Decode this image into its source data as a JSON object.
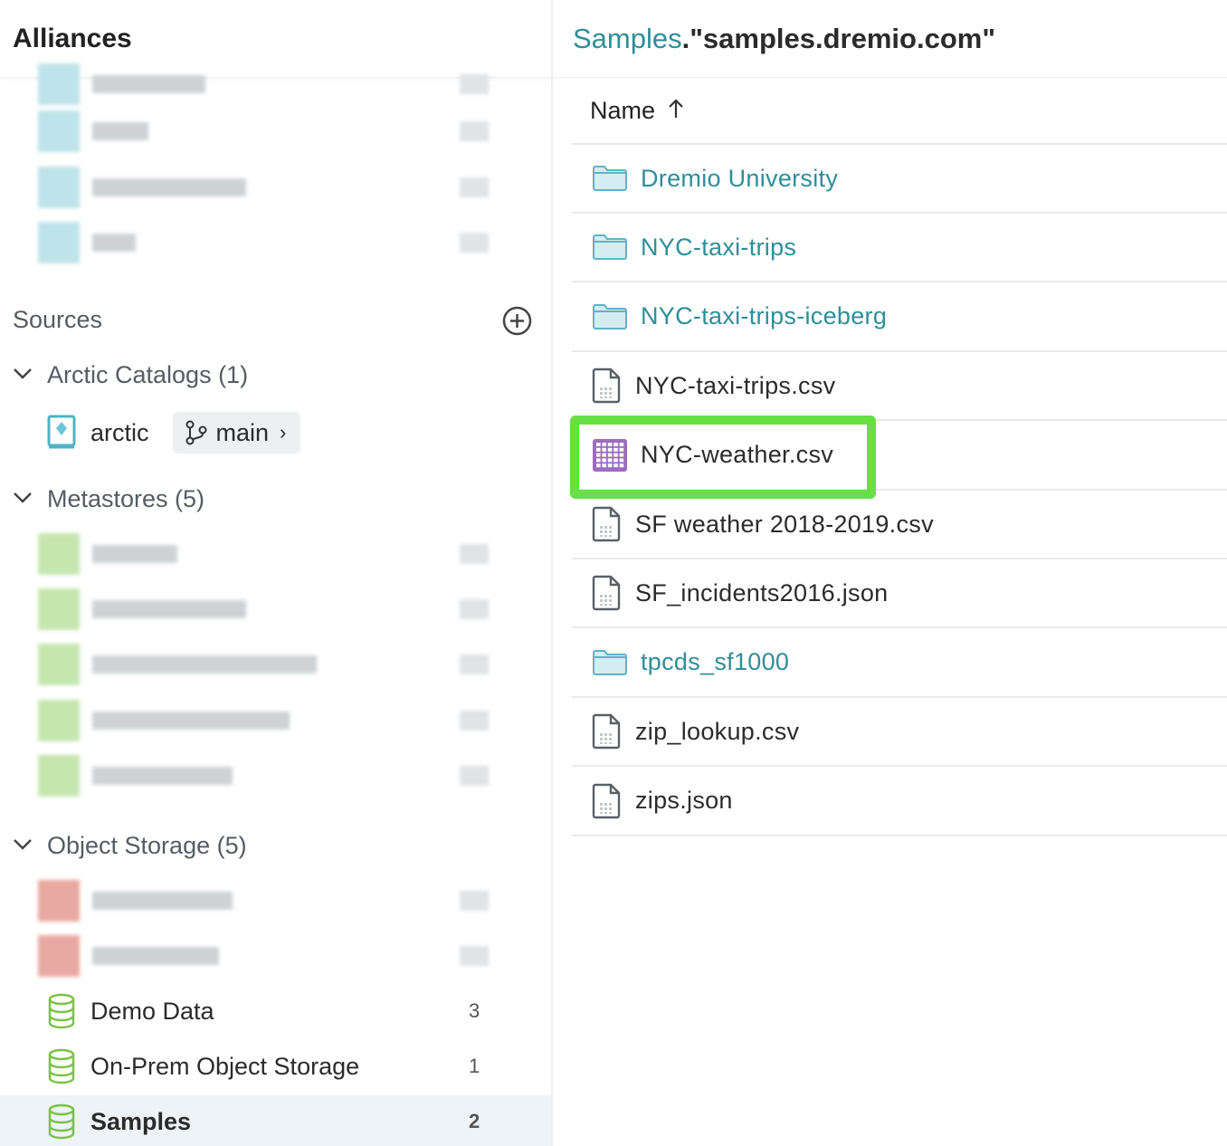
{
  "left": {
    "title": "Alliances",
    "sources_label": "Sources",
    "add_icon": "plus-circle-icon",
    "arctic_group": {
      "label": "Arctic Catalogs (1)",
      "items": [
        {
          "name": "arctic",
          "branch": "main"
        }
      ]
    },
    "metastores_group": {
      "label": "Metastores (5)"
    },
    "object_storage_group": {
      "label": "Object Storage (5)",
      "items": [
        {
          "name": "Demo Data",
          "count": "3"
        },
        {
          "name": "On-Prem Object Storage",
          "count": "1"
        },
        {
          "name": "Samples",
          "count": "2",
          "selected": true
        }
      ]
    }
  },
  "right": {
    "breadcrumb_parent": "Samples",
    "breadcrumb_current": ".\"samples.dremio.com\"",
    "column_name": "Name",
    "sort_icon": "arrow-up-icon",
    "rows": [
      {
        "name": "Dremio University",
        "type": "folder"
      },
      {
        "name": "NYC-taxi-trips",
        "type": "folder"
      },
      {
        "name": "NYC-taxi-trips-iceberg",
        "type": "folder"
      },
      {
        "name": "NYC-taxi-trips.csv",
        "type": "file"
      },
      {
        "name": "NYC-weather.csv",
        "type": "dataset",
        "highlighted": true
      },
      {
        "name": "SF weather 2018-2019.csv",
        "type": "file"
      },
      {
        "name": "SF_incidents2016.json",
        "type": "file"
      },
      {
        "name": "tpcds_sf1000",
        "type": "folder"
      },
      {
        "name": "zip_lookup.csv",
        "type": "file"
      },
      {
        "name": "zips.json",
        "type": "file"
      }
    ],
    "colors": {
      "link": "#2f8e99",
      "highlight": "#67e043",
      "dataset": "#9b6cc0"
    }
  }
}
